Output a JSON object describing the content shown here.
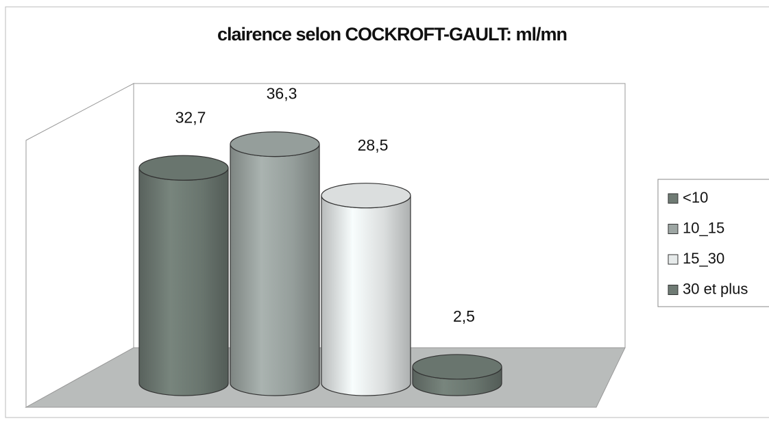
{
  "chart_data": {
    "type": "bar",
    "title": "clairence selon COCKROFT-GAULT: ml/mn",
    "series": [
      {
        "name": "<10",
        "color": "#6f7b74",
        "values": [
          32.7
        ],
        "value_labels": [
          "32,7"
        ]
      },
      {
        "name": "10_15",
        "color": "#9da6a3",
        "values": [
          36.3
        ],
        "value_labels": [
          "36,3"
        ]
      },
      {
        "name": "15_30",
        "color": "#e6eaea",
        "values": [
          28.5
        ],
        "value_labels": [
          "28,5"
        ]
      },
      {
        "name": "30 et plus",
        "color": "#6f7b74",
        "values": [
          2.5
        ],
        "value_labels": [
          "2,5"
        ]
      }
    ],
    "ylim": [
      0,
      40
    ],
    "legend": "right"
  }
}
